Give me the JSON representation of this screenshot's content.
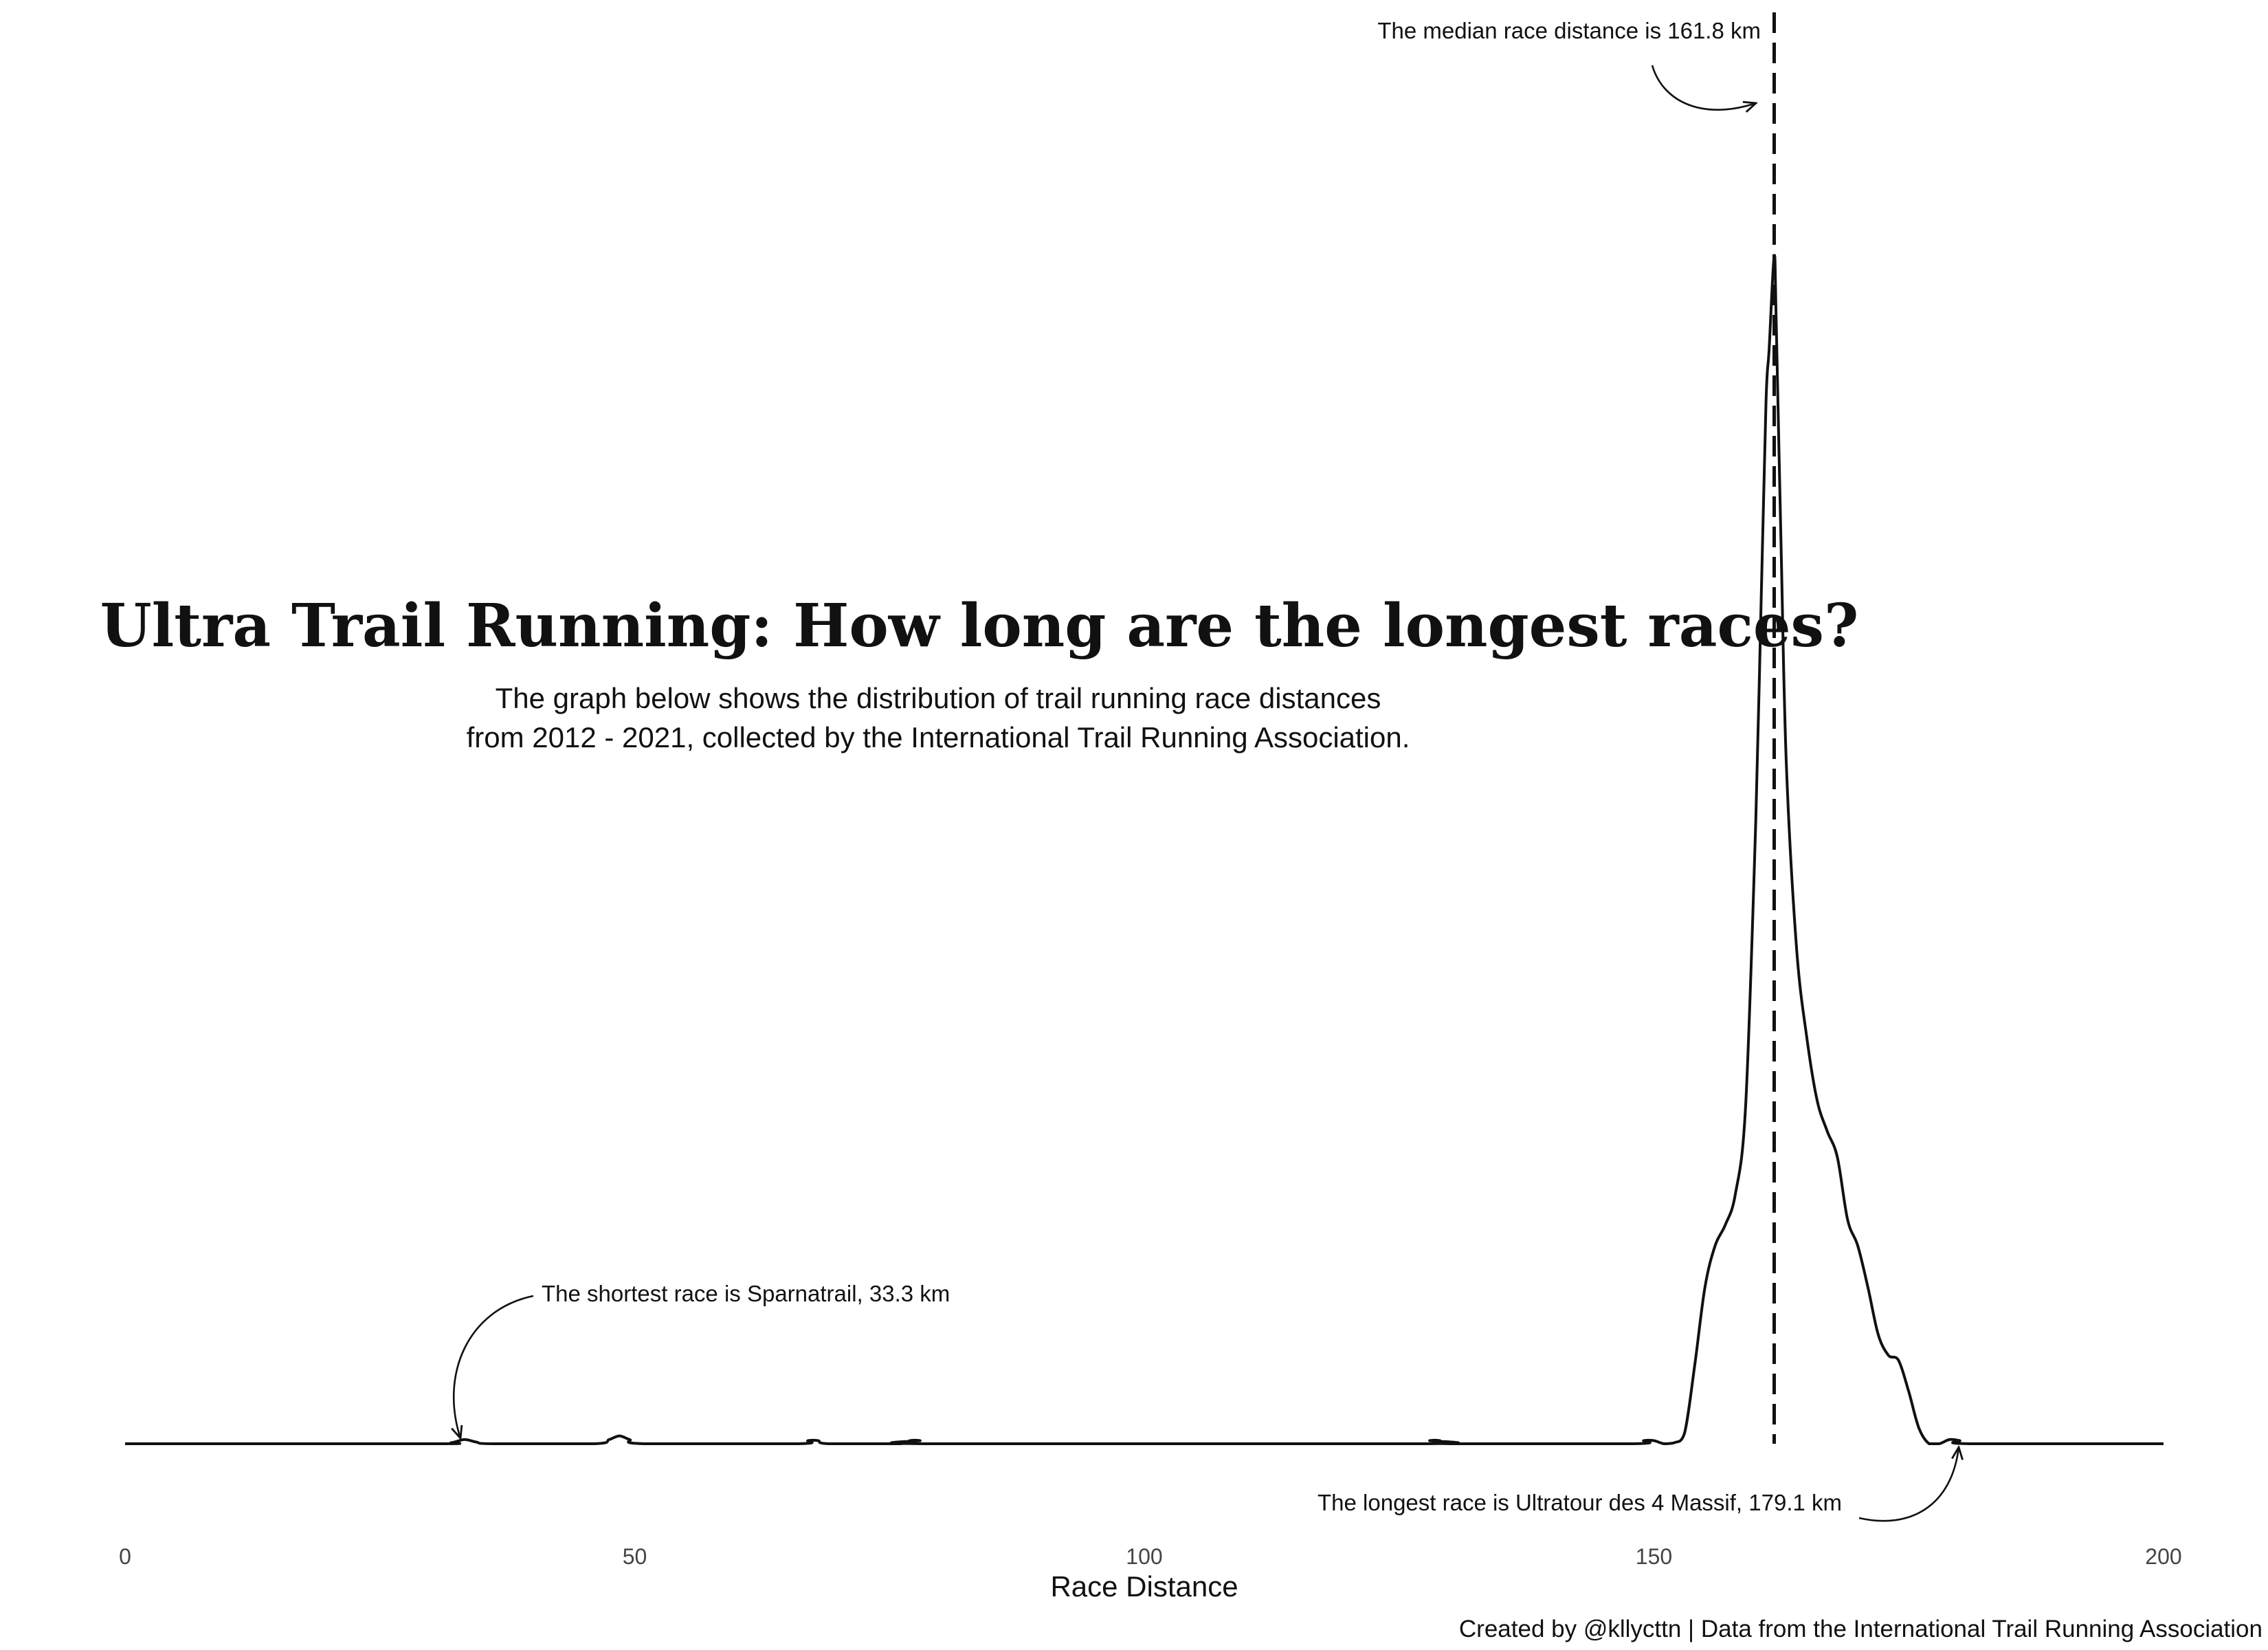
{
  "chart_data": {
    "type": "area",
    "title": "Ultra Trail Running: How long are the longest races?",
    "subtitle_lines": [
      "The graph below shows the distribution of trail running race distances",
      "from 2012 - 2021, collected by the International Trail Running Association."
    ],
    "xlabel": "Race Distance",
    "ylabel": "",
    "xlim": [
      0,
      200
    ],
    "ylim": [
      0,
      0.23
    ],
    "x_ticks": [
      0,
      50,
      100,
      150,
      200
    ],
    "x_tick_labels": [
      "0",
      "50",
      "100",
      "150",
      "200"
    ],
    "grid": false,
    "density": {
      "x": [
        0,
        30,
        32,
        33.3,
        34.5,
        36,
        46,
        47.5,
        48.5,
        49.5,
        51,
        66,
        67,
        68,
        69,
        76,
        77,
        78,
        79,
        127,
        128,
        129,
        130,
        148,
        149,
        150,
        151,
        152,
        153,
        154,
        155,
        156,
        157,
        158,
        159,
        160,
        160.5,
        161,
        161.3,
        161.8,
        162,
        162.5,
        163,
        164,
        165,
        166,
        167,
        168,
        169,
        170,
        171,
        172,
        173,
        174,
        175,
        176,
        177,
        178,
        179,
        180,
        181,
        200
      ],
      "y": [
        0,
        0,
        0.0002,
        0.0008,
        0.0003,
        0,
        0,
        0.0008,
        0.0015,
        0.0008,
        0,
        0,
        0.0006,
        0.0006,
        0,
        0,
        0.0006,
        0.0006,
        0,
        0,
        0.0006,
        0.0006,
        0,
        0,
        0.0006,
        0.0006,
        0,
        0.0002,
        0.002,
        0.015,
        0.03,
        0.038,
        0.042,
        0.048,
        0.065,
        0.12,
        0.16,
        0.2,
        0.21,
        0.228,
        0.215,
        0.17,
        0.13,
        0.095,
        0.078,
        0.066,
        0.06,
        0.055,
        0.043,
        0.038,
        0.03,
        0.021,
        0.017,
        0.016,
        0.01,
        0.003,
        0,
        0,
        0.0008,
        0.0006,
        0,
        0
      ]
    },
    "median_line": {
      "x": 161.8
    },
    "annotations": {
      "median": "The median race distance is 161.8 km",
      "shortest": "The shortest race is Sparnatrail, 33.3 km",
      "longest": "The longest race is Ultratour des 4 Massif, 179.1 km"
    },
    "caption": "Created by @kllycttn | Data from the International Trail Running Association",
    "line_color": "#111111"
  }
}
